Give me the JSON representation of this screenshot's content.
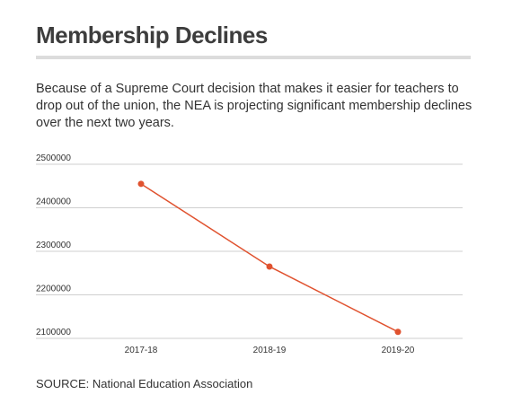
{
  "header": {
    "title": "Membership Declines",
    "subtitle": "Because of a Supreme Court decision that makes it easier for teachers to drop out of the union, the NEA is projecting significant membership declines over the next two years."
  },
  "footer": {
    "source": "SOURCE: National Education Association"
  },
  "colors": {
    "line": "#e0522f",
    "grid": "#cfcfcf"
  },
  "chart_data": {
    "type": "line",
    "title": "Membership Declines",
    "categories": [
      "2017-18",
      "2018-19",
      "2019-20"
    ],
    "series": [
      {
        "values": [
          2455000,
          2265000,
          2115000
        ]
      }
    ],
    "yticks": [
      2100000,
      2200000,
      2300000,
      2400000,
      2500000
    ],
    "ytick_labels": [
      "2100000",
      "2200000",
      "2300000",
      "2400000",
      "2500000"
    ],
    "ylim": [
      2100000,
      2500000
    ],
    "grid": true,
    "legend": "none"
  }
}
